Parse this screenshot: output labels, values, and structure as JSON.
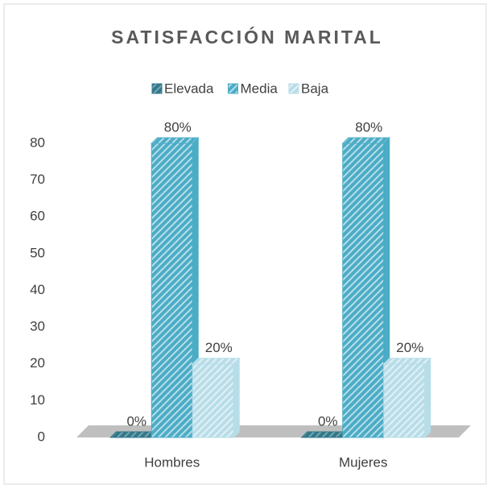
{
  "chart_data": {
    "type": "bar3d",
    "title": "SATISFACCIÓN MARITAL",
    "categories": [
      "Hombres",
      "Mujeres"
    ],
    "series": [
      {
        "name": "Elevada",
        "color": "#31788a",
        "values": [
          0,
          0
        ],
        "value_labels": [
          "0%",
          "0%"
        ]
      },
      {
        "name": "Media",
        "color": "#4bacc6",
        "values": [
          80,
          80
        ],
        "value_labels": [
          "80%",
          "80%"
        ]
      },
      {
        "name": "Baja",
        "color": "#b7dde8",
        "values": [
          20,
          20
        ],
        "value_labels": [
          "20%",
          "20%"
        ]
      }
    ],
    "ylim": [
      0,
      80
    ],
    "yticks": [
      0,
      10,
      20,
      30,
      40,
      50,
      60,
      70,
      80
    ],
    "legend": "top"
  }
}
